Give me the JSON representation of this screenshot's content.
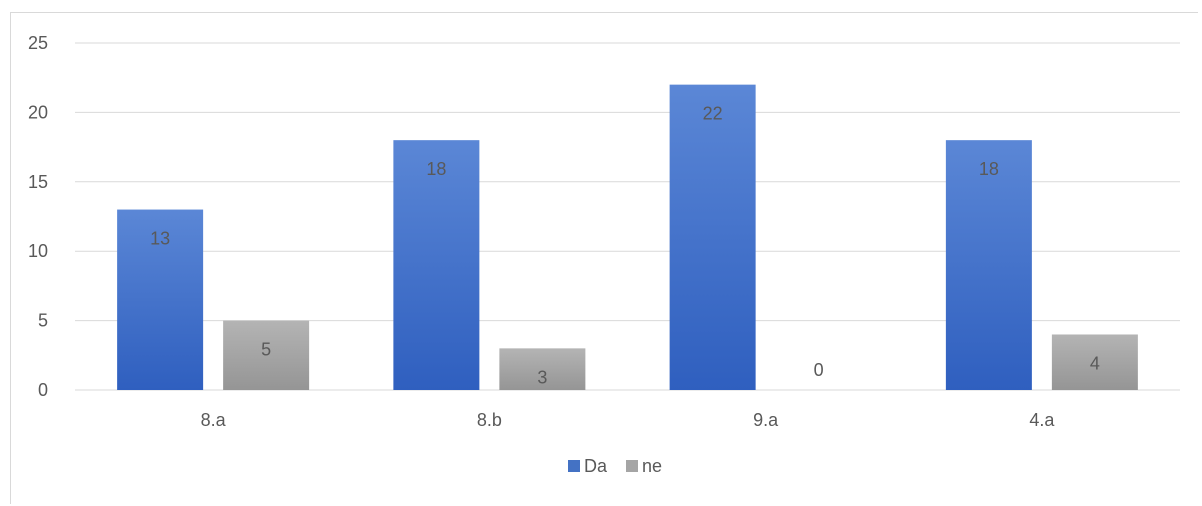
{
  "chart_data": {
    "type": "bar",
    "categories": [
      "8.a",
      "8.b",
      "9.a",
      "4.a"
    ],
    "series": [
      {
        "name": "Da",
        "values": [
          13,
          18,
          22,
          18
        ],
        "color": "#4472c4"
      },
      {
        "name": "ne",
        "values": [
          5,
          3,
          0,
          4
        ],
        "color": "#a5a5a5"
      }
    ],
    "ylim": [
      0,
      25
    ],
    "yticks": [
      0,
      5,
      10,
      15,
      20,
      25
    ],
    "grid": true,
    "legend": "bottom",
    "data_labels": true
  }
}
